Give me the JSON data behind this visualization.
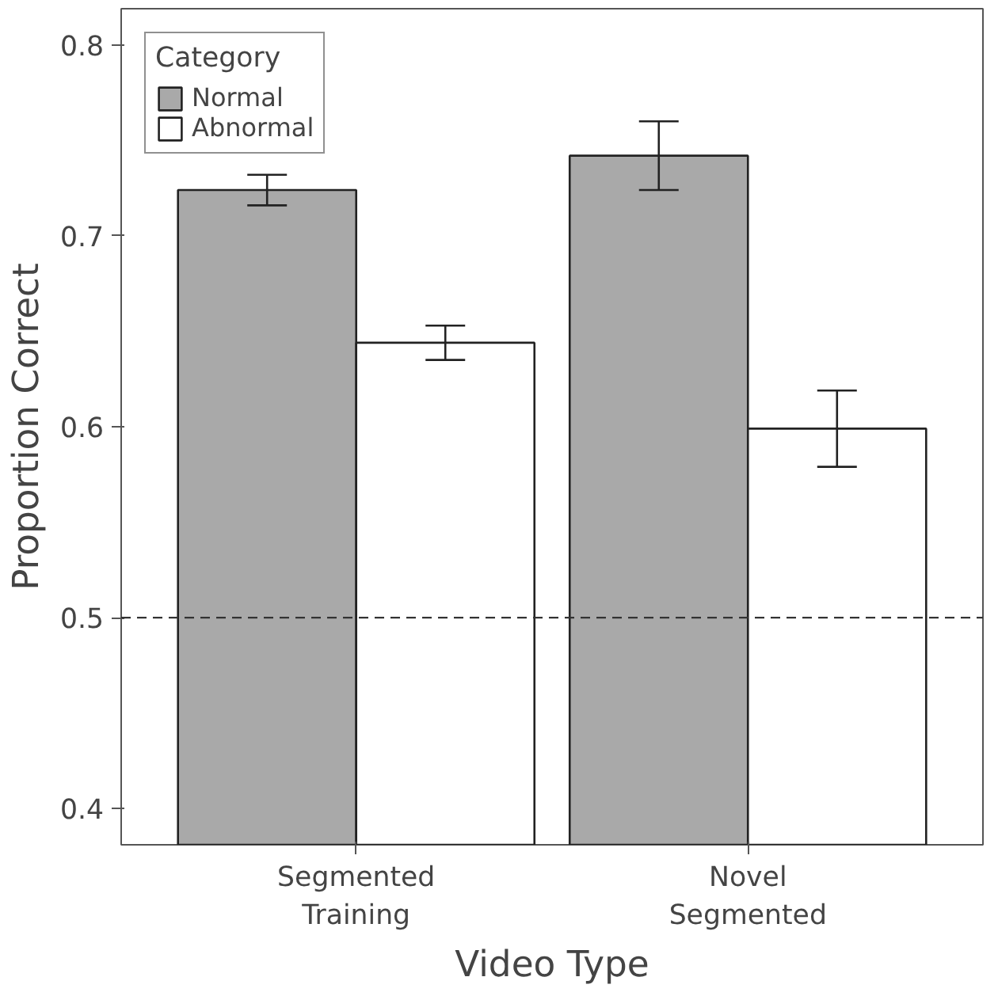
{
  "chart_data": {
    "type": "bar",
    "xlabel": "Video Type",
    "ylabel": "Proportion Correct",
    "legend_title": "Category",
    "categories": [
      "Segmented\nTraining",
      "Novel\nSegmented"
    ],
    "series": [
      {
        "name": "Normal",
        "color": "#a9a9a9",
        "values": [
          0.724,
          0.742
        ],
        "errors": [
          0.008,
          0.018
        ]
      },
      {
        "name": "Abnormal",
        "color": "#ffffff",
        "values": [
          0.644,
          0.599
        ],
        "errors": [
          0.009,
          0.02
        ]
      }
    ],
    "ylim": [
      0.381,
      0.819
    ],
    "yticks": [
      0.4,
      0.5,
      0.6,
      0.7,
      0.8
    ],
    "ref_lines": [
      {
        "axis": "y",
        "value": 0.5,
        "line_style": "dashed",
        "color": "#333333"
      }
    ],
    "grid": false,
    "legend": "top left"
  }
}
